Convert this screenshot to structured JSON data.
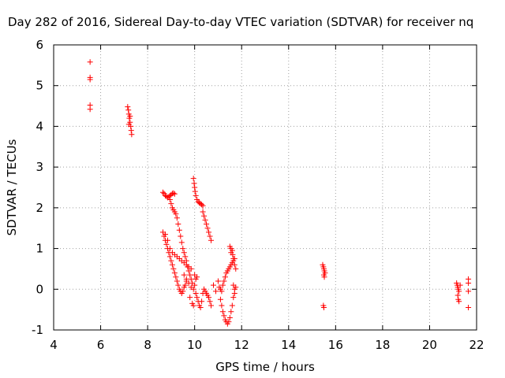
{
  "chart_data": {
    "type": "scatter",
    "title": "Day 282 of 2016, Sidereal Day-to-day VTEC variation (SDTVAR) for receiver nq",
    "xlabel": "GPS time / hours",
    "ylabel": "SDTVAR / TECUs",
    "xlim": [
      4,
      22
    ],
    "ylim": [
      -1,
      6
    ],
    "xticks": [
      4,
      6,
      8,
      10,
      12,
      14,
      16,
      18,
      20,
      22
    ],
    "yticks": [
      -1,
      0,
      1,
      2,
      3,
      4,
      5,
      6
    ],
    "grid": true,
    "marker": "+",
    "color": "#ff0000",
    "series": [
      {
        "values": [
          [
            5.55,
            5.58
          ],
          [
            5.55,
            5.2
          ],
          [
            5.55,
            5.15
          ],
          [
            5.55,
            4.52
          ],
          [
            5.55,
            4.42
          ],
          [
            7.15,
            4.48
          ],
          [
            7.18,
            4.4
          ],
          [
            7.2,
            4.3
          ],
          [
            7.22,
            4.2
          ],
          [
            7.25,
            4.1
          ],
          [
            7.28,
            4.0
          ],
          [
            7.3,
            3.9
          ],
          [
            7.32,
            3.8
          ],
          [
            7.2,
            4.05
          ],
          [
            7.25,
            4.25
          ],
          [
            8.65,
            2.38
          ],
          [
            8.7,
            2.35
          ],
          [
            8.75,
            2.3
          ],
          [
            8.8,
            2.28
          ],
          [
            8.85,
            2.25
          ],
          [
            8.9,
            2.27
          ],
          [
            8.95,
            2.3
          ],
          [
            9.0,
            2.32
          ],
          [
            9.05,
            2.35
          ],
          [
            9.1,
            2.36
          ],
          [
            9.15,
            2.34
          ],
          [
            8.95,
            2.2
          ],
          [
            9.0,
            2.1
          ],
          [
            9.05,
            2.0
          ],
          [
            9.1,
            1.95
          ],
          [
            9.15,
            1.9
          ],
          [
            9.2,
            1.85
          ],
          [
            9.25,
            1.75
          ],
          [
            9.3,
            1.6
          ],
          [
            9.35,
            1.45
          ],
          [
            9.4,
            1.3
          ],
          [
            9.45,
            1.15
          ],
          [
            9.5,
            1.0
          ],
          [
            9.55,
            0.9
          ],
          [
            9.6,
            0.8
          ],
          [
            9.65,
            0.7
          ],
          [
            9.7,
            0.55
          ],
          [
            9.75,
            0.45
          ],
          [
            9.8,
            0.35
          ],
          [
            9.85,
            0.25
          ],
          [
            9.9,
            0.15
          ],
          [
            8.65,
            1.4
          ],
          [
            8.7,
            1.3
          ],
          [
            8.75,
            1.2
          ],
          [
            8.8,
            1.1
          ],
          [
            8.85,
            1.0
          ],
          [
            8.9,
            0.9
          ],
          [
            8.95,
            0.8
          ],
          [
            9.0,
            0.7
          ],
          [
            9.05,
            0.6
          ],
          [
            9.1,
            0.5
          ],
          [
            9.15,
            0.4
          ],
          [
            9.2,
            0.3
          ],
          [
            9.25,
            0.2
          ],
          [
            9.3,
            0.1
          ],
          [
            9.35,
            0.0
          ],
          [
            9.4,
            -0.05
          ],
          [
            9.45,
            -0.1
          ],
          [
            9.5,
            -0.05
          ],
          [
            9.55,
            0.05
          ],
          [
            9.6,
            0.1
          ],
          [
            9.65,
            0.2
          ],
          [
            8.75,
            1.35
          ],
          [
            8.85,
            1.2
          ],
          [
            8.95,
            1.0
          ],
          [
            9.05,
            0.9
          ],
          [
            9.15,
            0.85
          ],
          [
            9.25,
            0.8
          ],
          [
            9.35,
            0.75
          ],
          [
            9.45,
            0.7
          ],
          [
            9.55,
            0.65
          ],
          [
            9.65,
            0.6
          ],
          [
            9.75,
            0.55
          ],
          [
            9.85,
            0.5
          ],
          [
            9.55,
            0.35
          ],
          [
            9.65,
            0.25
          ],
          [
            9.75,
            0.15
          ],
          [
            9.85,
            0.05
          ],
          [
            9.95,
            0.0
          ],
          [
            10.0,
            0.1
          ],
          [
            10.05,
            0.25
          ],
          [
            10.1,
            0.3
          ],
          [
            9.8,
            -0.2
          ],
          [
            9.9,
            -0.35
          ],
          [
            9.95,
            -0.4
          ],
          [
            10.0,
            0.35
          ],
          [
            9.95,
            2.72
          ],
          [
            9.98,
            2.6
          ],
          [
            10.0,
            2.5
          ],
          [
            10.02,
            2.4
          ],
          [
            10.05,
            2.3
          ],
          [
            10.1,
            2.2
          ],
          [
            10.15,
            2.15
          ],
          [
            10.2,
            2.12
          ],
          [
            10.25,
            2.1
          ],
          [
            10.3,
            2.08
          ],
          [
            10.35,
            2.05
          ],
          [
            10.35,
            1.9
          ],
          [
            10.4,
            1.8
          ],
          [
            10.45,
            1.7
          ],
          [
            10.5,
            1.6
          ],
          [
            10.55,
            1.5
          ],
          [
            10.6,
            1.4
          ],
          [
            10.65,
            1.3
          ],
          [
            10.7,
            1.2
          ],
          [
            10.05,
            -0.1
          ],
          [
            10.1,
            -0.2
          ],
          [
            10.15,
            -0.3
          ],
          [
            10.2,
            -0.4
          ],
          [
            10.25,
            -0.45
          ],
          [
            10.3,
            -0.3
          ],
          [
            10.35,
            -0.1
          ],
          [
            10.4,
            0.0
          ],
          [
            10.45,
            -0.05
          ],
          [
            10.5,
            -0.1
          ],
          [
            10.55,
            -0.15
          ],
          [
            10.6,
            -0.2
          ],
          [
            10.65,
            -0.3
          ],
          [
            10.7,
            -0.4
          ],
          [
            10.8,
            0.1
          ],
          [
            10.9,
            -0.05
          ],
          [
            11.0,
            0.2
          ],
          [
            11.1,
            -0.25
          ],
          [
            11.15,
            -0.4
          ],
          [
            11.2,
            -0.55
          ],
          [
            11.25,
            -0.65
          ],
          [
            11.3,
            -0.75
          ],
          [
            11.35,
            -0.8
          ],
          [
            11.4,
            -0.85
          ],
          [
            11.45,
            -0.8
          ],
          [
            11.5,
            -0.7
          ],
          [
            11.55,
            -0.55
          ],
          [
            11.6,
            -0.4
          ],
          [
            11.65,
            -0.2
          ],
          [
            11.7,
            -0.1
          ],
          [
            11.05,
            0.05
          ],
          [
            11.1,
            0.0
          ],
          [
            11.15,
            -0.05
          ],
          [
            11.2,
            0.1
          ],
          [
            11.25,
            0.2
          ],
          [
            11.3,
            0.3
          ],
          [
            11.35,
            0.4
          ],
          [
            11.4,
            0.45
          ],
          [
            11.45,
            0.5
          ],
          [
            11.5,
            0.55
          ],
          [
            11.55,
            0.6
          ],
          [
            11.6,
            0.65
          ],
          [
            11.65,
            0.7
          ],
          [
            11.7,
            0.75
          ],
          [
            11.5,
            1.05
          ],
          [
            11.55,
            1.0
          ],
          [
            11.6,
            0.95
          ],
          [
            11.62,
            0.85
          ],
          [
            11.65,
            0.75
          ],
          [
            11.7,
            0.6
          ],
          [
            11.75,
            0.5
          ],
          [
            11.55,
            0.9
          ],
          [
            11.65,
            0.1
          ],
          [
            11.7,
            0.0
          ],
          [
            11.75,
            0.05
          ],
          [
            15.45,
            0.6
          ],
          [
            15.48,
            0.55
          ],
          [
            15.5,
            0.5
          ],
          [
            15.52,
            0.45
          ],
          [
            15.55,
            0.4
          ],
          [
            15.5,
            0.35
          ],
          [
            15.52,
            0.3
          ],
          [
            15.48,
            -0.4
          ],
          [
            15.5,
            -0.45
          ],
          [
            21.15,
            0.15
          ],
          [
            21.18,
            0.1
          ],
          [
            21.2,
            0.05
          ],
          [
            21.22,
            0.0
          ],
          [
            21.25,
            -0.05
          ],
          [
            21.2,
            -0.15
          ],
          [
            21.22,
            -0.25
          ],
          [
            21.25,
            -0.3
          ],
          [
            21.3,
            0.1
          ],
          [
            21.65,
            0.25
          ],
          [
            21.65,
            0.15
          ],
          [
            21.65,
            -0.05
          ],
          [
            21.65,
            -0.45
          ]
        ]
      }
    ]
  }
}
